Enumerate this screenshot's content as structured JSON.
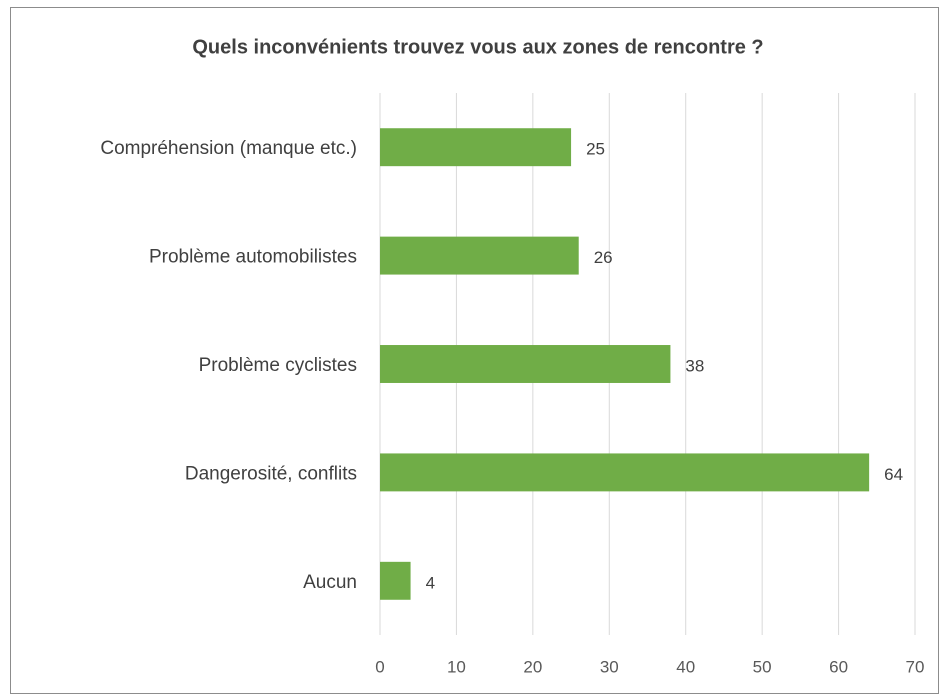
{
  "chart_data": {
    "type": "bar",
    "orientation": "horizontal",
    "title": "Quels inconvénients trouvez vous aux zones de rencontre ?",
    "categories": [
      "Compréhension (manque etc.)",
      "Problème automobilistes",
      "Problème cyclistes",
      "Dangerosité, conflits",
      "Aucun"
    ],
    "values": [
      25,
      26,
      38,
      64,
      4
    ],
    "color": "#70ad47",
    "xlim": [
      0,
      70
    ],
    "xticks": [
      0,
      10,
      20,
      30,
      40,
      50,
      60,
      70
    ],
    "grid": true
  }
}
